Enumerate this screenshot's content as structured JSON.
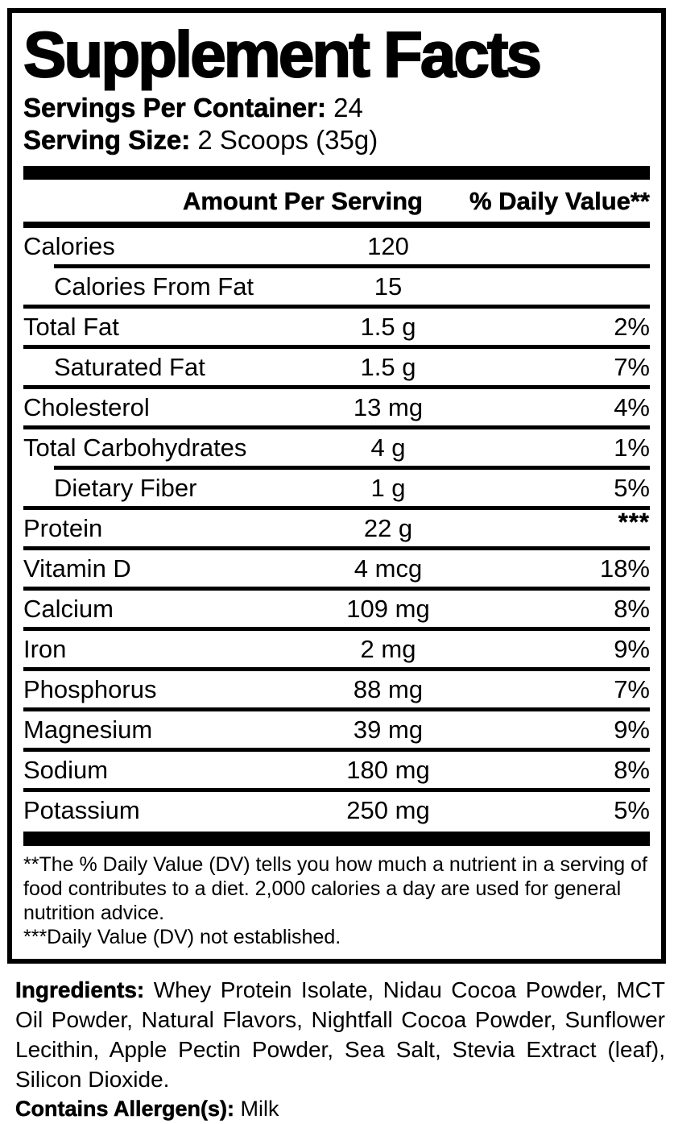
{
  "colors": {
    "ink": "#000000",
    "background": "#ffffff"
  },
  "label": {
    "title": "Supplement Facts",
    "servings_per_container_label": "Servings Per Container:",
    "servings_per_container_value": " 24",
    "serving_size_label": "Serving Size:",
    "serving_size_value": " 2 Scoops (35g)",
    "column_headers": {
      "amount": "Amount Per Serving",
      "daily_value": "% Daily Value**"
    },
    "rows": [
      {
        "name": "Calories",
        "amount": "120",
        "dv": "",
        "indent": false,
        "divider_above": "none"
      },
      {
        "name": "Calories From Fat",
        "amount": "15",
        "dv": "",
        "indent": true,
        "divider_above": "indented"
      },
      {
        "name": "Total Fat",
        "amount": "1.5 g",
        "dv": "2%",
        "indent": false,
        "divider_above": "full"
      },
      {
        "name": "Saturated Fat",
        "amount": "1.5 g",
        "dv": "7%",
        "indent": true,
        "divider_above": "full"
      },
      {
        "name": "Cholesterol",
        "amount": "13 mg",
        "dv": "4%",
        "indent": false,
        "divider_above": "full"
      },
      {
        "name": "Total Carbohydrates",
        "amount": "4 g",
        "dv": "1%",
        "indent": false,
        "divider_above": "full"
      },
      {
        "name": "Dietary Fiber",
        "amount": "1 g",
        "dv": "5%",
        "indent": true,
        "divider_above": "indented"
      },
      {
        "name": "Protein",
        "amount": "22 g",
        "dv": "***",
        "indent": false,
        "divider_above": "full"
      },
      {
        "name": "Vitamin D",
        "amount": "4 mcg",
        "dv": "18%",
        "indent": false,
        "divider_above": "full"
      },
      {
        "name": "Calcium",
        "amount": "109 mg",
        "dv": "8%",
        "indent": false,
        "divider_above": "full"
      },
      {
        "name": "Iron",
        "amount": "2 mg",
        "dv": "9%",
        "indent": false,
        "divider_above": "full"
      },
      {
        "name": "Phosphorus",
        "amount": "88 mg",
        "dv": "7%",
        "indent": false,
        "divider_above": "full"
      },
      {
        "name": "Magnesium",
        "amount": "39 mg",
        "dv": "9%",
        "indent": false,
        "divider_above": "full"
      },
      {
        "name": "Sodium",
        "amount": "180 mg",
        "dv": "8%",
        "indent": false,
        "divider_above": "full"
      },
      {
        "name": "Potassium",
        "amount": "250 mg",
        "dv": "5%",
        "indent": false,
        "divider_above": "full"
      }
    ],
    "footnotes": [
      "**The % Daily Value (DV) tells you how much a nutrient in a serving of food contributes to a diet. 2,000 calories a day are used for general nutrition advice.",
      "***Daily Value (DV) not established."
    ],
    "ingredients_label": "Ingredients:",
    "ingredients_text": " Whey Protein Isolate, Nidau Cocoa Powder, MCT Oil Powder, Natural Flavors, Nightfall Cocoa Powder, Sunflower Lecithin, Apple Pectin Powder, Sea Salt, Stevia Extract (leaf), Silicon Dioxide.",
    "allergen_label": "Contains Allergen(s):",
    "allergen_value": " Milk"
  }
}
